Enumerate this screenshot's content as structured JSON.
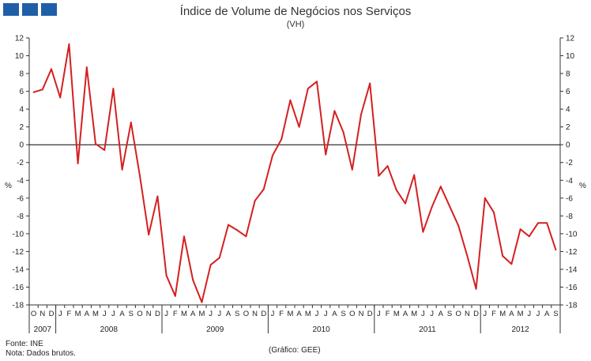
{
  "header": {
    "title": "Índice de Volume de Negócios nos Serviços",
    "subtitle": "(VH)"
  },
  "logo": {
    "icon": "ine-logo-blocks",
    "color": "#1f5fa8"
  },
  "footer": {
    "source": "Fonte: INE",
    "note": "Nota: Dados brutos.",
    "credit": "(Gráfico: GEE)"
  },
  "chart_data": {
    "type": "line",
    "title": "Índice de Volume de Negócios nos Serviços",
    "subtitle": "(VH)",
    "ylabel": "%",
    "ylabel_right": "%",
    "ylim": [
      -18,
      12
    ],
    "yticks": [
      12,
      10,
      8,
      6,
      4,
      2,
      0,
      -2,
      -4,
      -6,
      -8,
      -10,
      -12,
      -14,
      -16,
      -18
    ],
    "grid": false,
    "line_color": "#d42020",
    "month_labels": [
      "O",
      "N",
      "D",
      "J",
      "F",
      "M",
      "A",
      "M",
      "J",
      "J",
      "A",
      "S",
      "O",
      "N",
      "D",
      "J",
      "F",
      "M",
      "A",
      "M",
      "J",
      "J",
      "A",
      "S",
      "O",
      "N",
      "D",
      "J",
      "F",
      "M",
      "A",
      "M",
      "J",
      "J",
      "A",
      "S",
      "O",
      "N",
      "D",
      "J",
      "F",
      "M",
      "A",
      "M",
      "J",
      "J",
      "A",
      "S",
      "O",
      "N",
      "D",
      "J",
      "F",
      "M",
      "A",
      "M",
      "J",
      "J",
      "A",
      "S"
    ],
    "years": [
      {
        "label": "2007",
        "months": 3
      },
      {
        "label": "2008",
        "months": 12
      },
      {
        "label": "2009",
        "months": 12
      },
      {
        "label": "2010",
        "months": 12
      },
      {
        "label": "2011",
        "months": 12
      },
      {
        "label": "2012",
        "months": 9
      }
    ],
    "series": [
      {
        "values": [
          5.9,
          6.2,
          8.5,
          5.3,
          11.3,
          -2.1,
          8.7,
          0.1,
          -0.6,
          6.3,
          -2.8,
          2.5,
          -3.5,
          -10.1,
          -5.8,
          -14.7,
          -17.0,
          -10.3,
          -15.2,
          -17.7,
          -13.5,
          -12.7,
          -9.0,
          -9.6,
          -10.3,
          -6.3,
          -5.0,
          -1.2,
          0.6,
          5.0,
          2.0,
          6.3,
          7.1,
          -1.1,
          3.8,
          1.4,
          -2.8,
          3.4,
          6.9,
          -3.5,
          -2.4,
          -5.1,
          -6.6,
          -3.4,
          -9.8,
          -7.0,
          -4.7,
          -6.9,
          -9.1,
          -12.5,
          -16.2,
          -6.0,
          -7.6,
          -12.5,
          -13.4,
          -9.5,
          -10.3,
          -8.8,
          -8.8,
          -11.8
        ]
      }
    ]
  }
}
